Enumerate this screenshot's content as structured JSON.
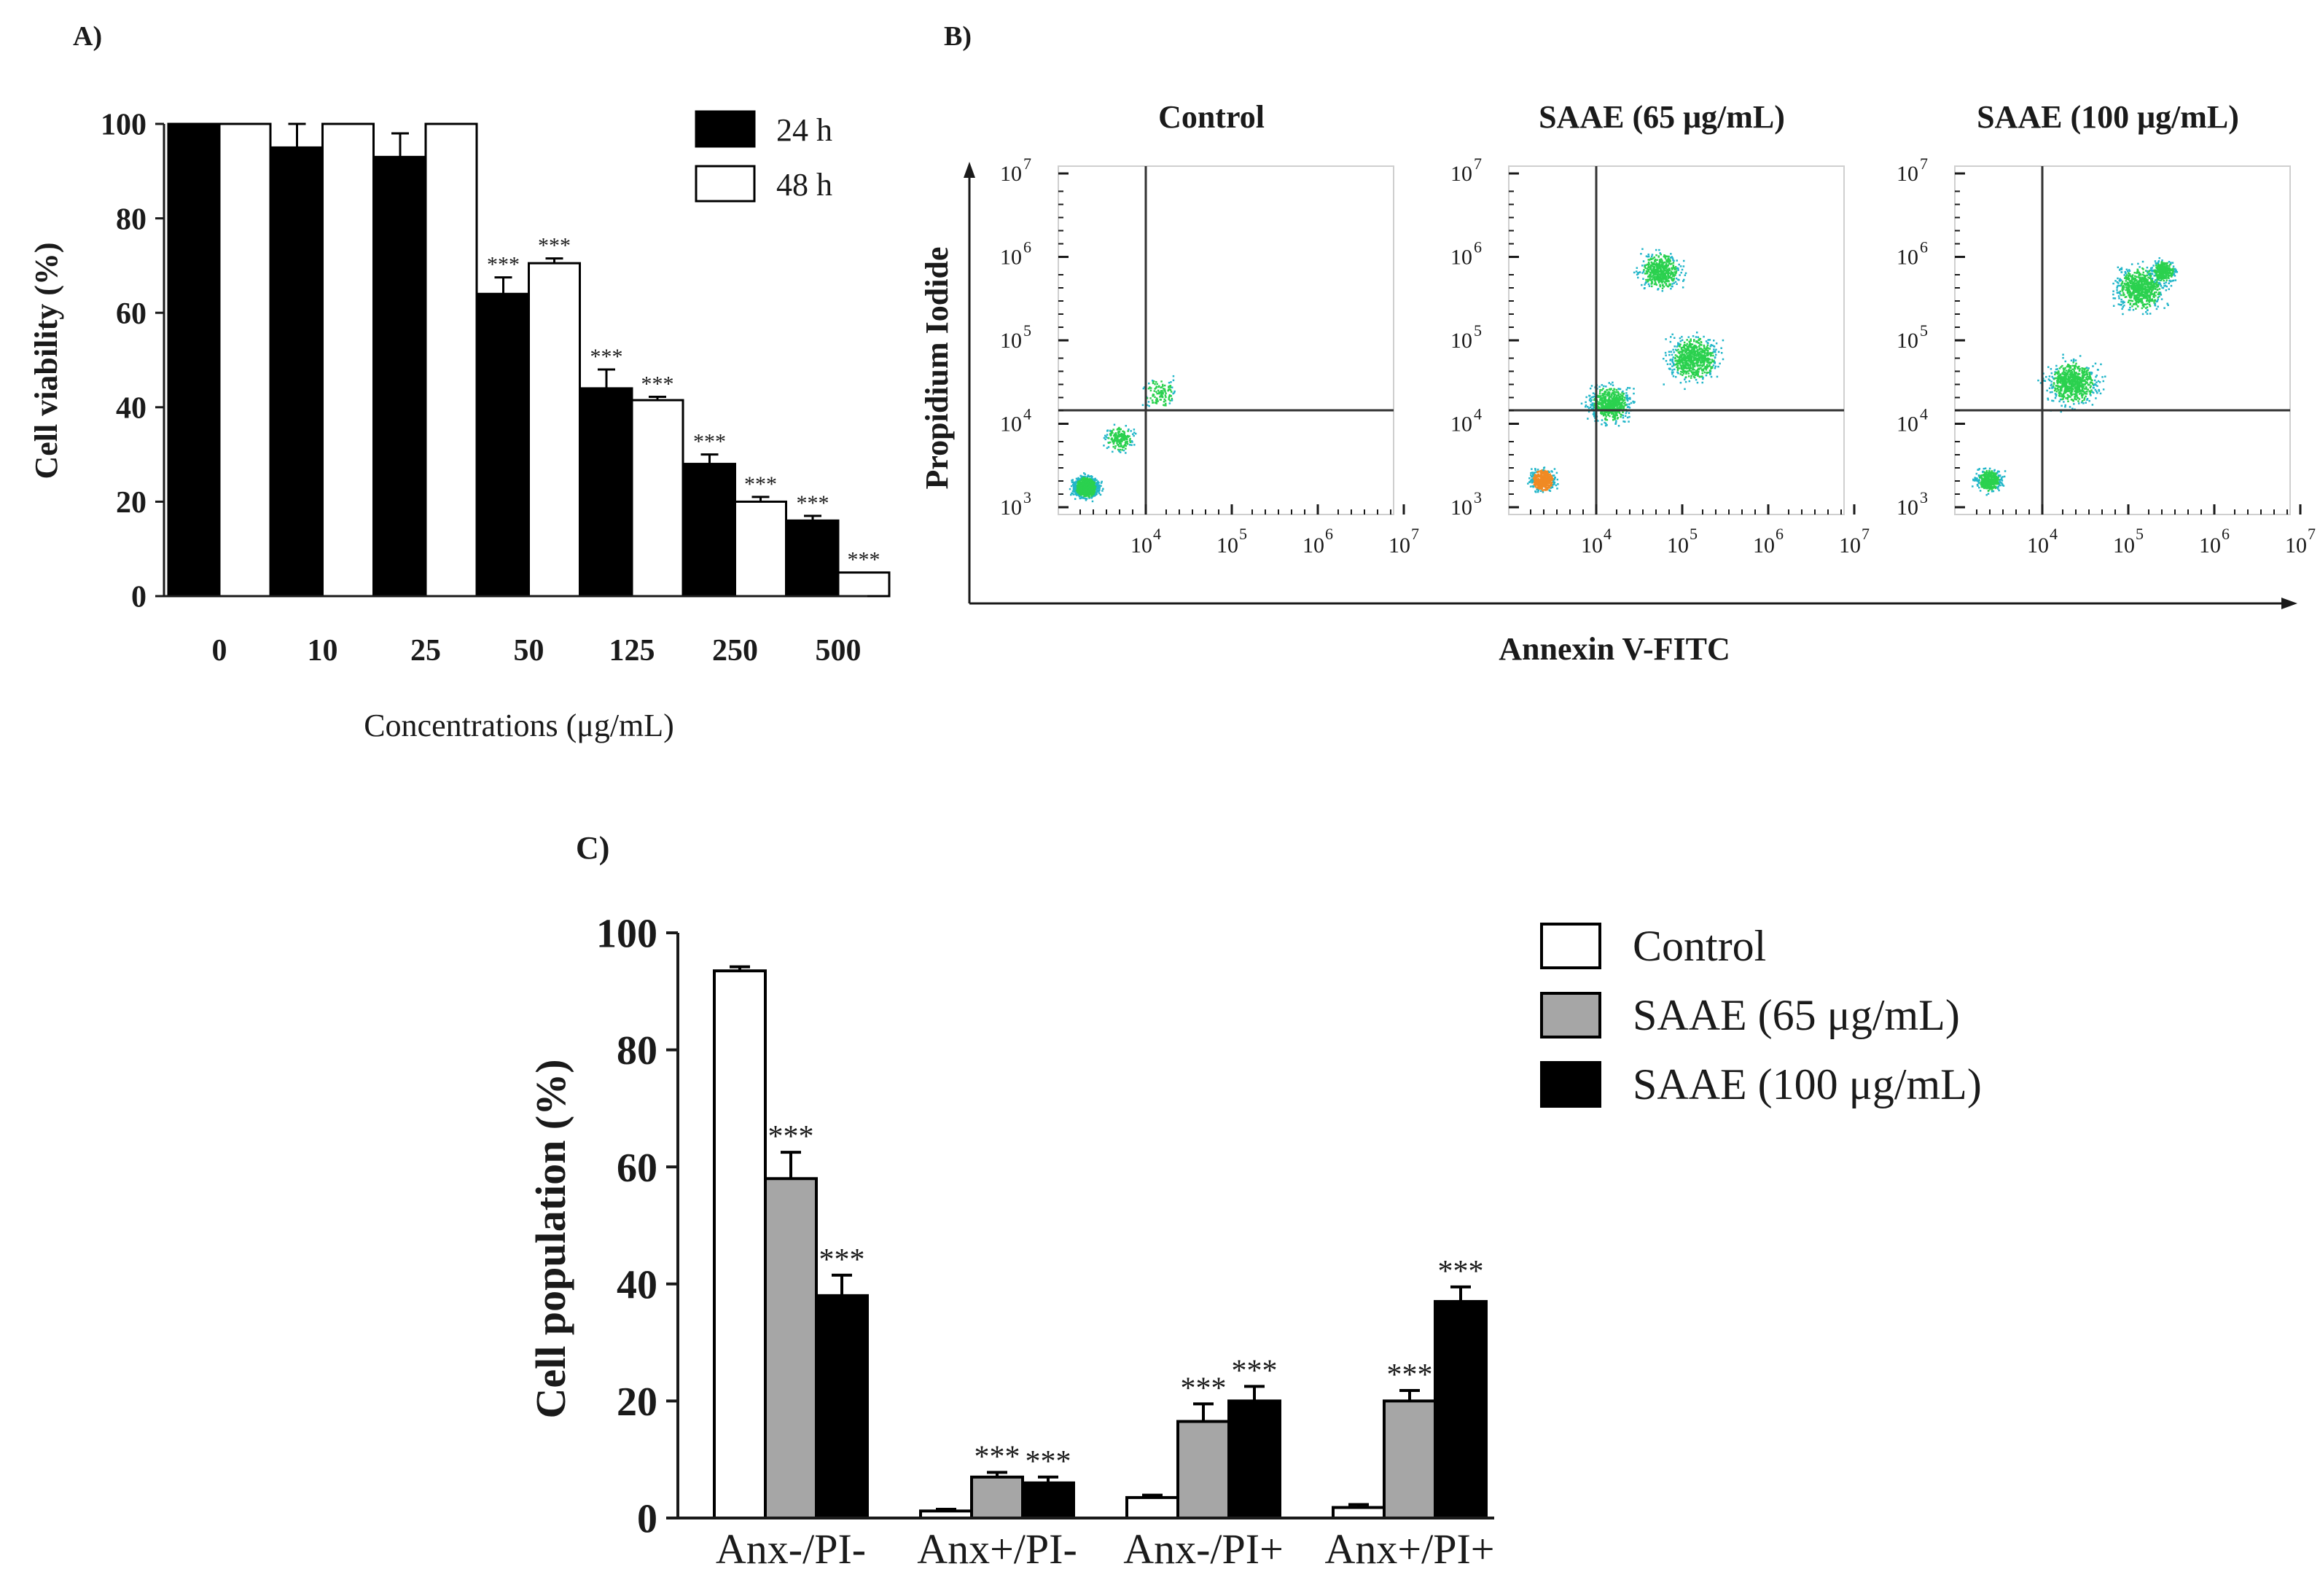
{
  "colors": {
    "black": "#000000",
    "white": "#ffffff",
    "gray": "#a6a6a6",
    "axis": "#1a1a1a",
    "quad": "#333333"
  },
  "significance_mark": "***",
  "chart_data": [
    {
      "panel": "A)",
      "type": "bar",
      "title": "",
      "xlabel": "Concentrations (μg/mL)",
      "ylabel": "Cell viability (%)",
      "ylim": [
        0,
        100
      ],
      "yticks": [
        "0",
        "20",
        "40",
        "60",
        "80",
        "100"
      ],
      "ytick_values": [
        0,
        20,
        40,
        60,
        80,
        100
      ],
      "categories": [
        "0",
        "10",
        "25",
        "50",
        "125",
        "250",
        "500"
      ],
      "legend_position": "top-right",
      "series": [
        {
          "name": "24 h",
          "color": "#000000",
          "values": [
            100,
            95,
            93,
            64,
            44,
            28,
            16
          ],
          "errors": [
            0,
            5,
            5,
            3.5,
            4,
            2,
            1
          ],
          "significance": [
            "",
            "",
            "",
            "***",
            "***",
            "***",
            "***"
          ]
        },
        {
          "name": "48 h",
          "color": "#ffffff",
          "values": [
            100,
            100,
            100,
            70.5,
            41.5,
            20,
            5
          ],
          "errors": [
            0,
            0,
            0,
            1,
            0.7,
            1,
            0
          ],
          "significance": [
            "",
            "",
            "",
            "***",
            "***",
            "***",
            "***"
          ]
        }
      ]
    },
    {
      "panel": "B)",
      "type": "scatter",
      "xlabel": "Annexin V-FITC",
      "ylabel": "Propidium Iodide",
      "x_tick_labels": [
        "10",
        "10",
        "10",
        "10"
      ],
      "x_tick_exponents": [
        "4",
        "5",
        "6",
        "7"
      ],
      "y_tick_labels": [
        "10",
        "10",
        "10",
        "10",
        "10"
      ],
      "y_tick_exponents": [
        "3",
        "4",
        "5",
        "6",
        "7"
      ],
      "plots": [
        {
          "title": "Control"
        },
        {
          "title": "SAAE (65 μg/mL)"
        },
        {
          "title": "SAAE (100 μg/mL)"
        }
      ]
    },
    {
      "panel": "C)",
      "type": "bar",
      "title": "",
      "xlabel": "",
      "ylabel": "Cell population (%)",
      "ylim": [
        0,
        100
      ],
      "yticks": [
        "0",
        "20",
        "40",
        "60",
        "80",
        "100"
      ],
      "ytick_values": [
        0,
        20,
        40,
        60,
        80,
        100
      ],
      "categories": [
        "Anx-/PI-",
        "Anx+/PI-",
        "Anx-/PI+",
        "Anx+/PI+"
      ],
      "legend_position": "top-right",
      "series": [
        {
          "name": "Control",
          "color": "#ffffff",
          "values": [
            93.5,
            1.2,
            3.5,
            1.8
          ],
          "errors": [
            0.7,
            0.3,
            0.4,
            0.5
          ],
          "significance": [
            "",
            "",
            "",
            ""
          ]
        },
        {
          "name": "SAAE (65 μg/mL)",
          "color": "#a6a6a6",
          "values": [
            58,
            7,
            16.5,
            20
          ],
          "errors": [
            4.5,
            0.8,
            3,
            1.8
          ],
          "significance": [
            "***",
            "***",
            "***",
            "***"
          ]
        },
        {
          "name": "SAAE (100 μg/mL)",
          "color": "#000000",
          "values": [
            38,
            6,
            20,
            37
          ],
          "errors": [
            3.5,
            1,
            2.5,
            2.5
          ],
          "significance": [
            "***",
            "***",
            "***",
            "***"
          ]
        }
      ]
    }
  ]
}
